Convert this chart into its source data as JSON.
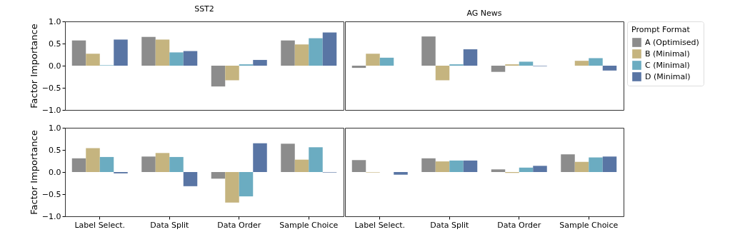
{
  "chart_data": [
    {
      "type": "bar",
      "title": "SST2",
      "ylabel": "Factor Importance",
      "categories": [
        "Label Select.",
        "Data Split",
        "Data Order",
        "Sample Choice"
      ],
      "ylim": [
        -1.0,
        1.0
      ],
      "yticks": [
        {
          "value": -1.0,
          "label": "−1.0"
        },
        {
          "value": -0.5,
          "label": "−0.5"
        },
        {
          "value": 0,
          "label": "0.0"
        },
        {
          "value": 0.5,
          "label": "0.5"
        },
        {
          "value": 1.0,
          "label": "1.0"
        }
      ],
      "tick_labels": "y",
      "grid": false,
      "legend": "right",
      "legend_title": "Prompt Format",
      "series": [
        {
          "name": "A (Optimised)",
          "color": "#8c8c8c",
          "values": [
            0.57,
            0.65,
            -0.47,
            0.57
          ]
        },
        {
          "name": "B (Minimal)",
          "color": "#c5b47f",
          "values": [
            0.27,
            0.59,
            -0.33,
            0.48
          ]
        },
        {
          "name": "C (Minimal)",
          "color": "#6bacc1",
          "values": [
            0.01,
            0.3,
            0.03,
            0.62
          ]
        },
        {
          "name": "D (Minimal)",
          "color": "#5975a4",
          "values": [
            0.59,
            0.33,
            0.13,
            0.75
          ]
        }
      ]
    },
    {
      "type": "bar",
      "title": "AG News",
      "categories": [
        "Label Select.",
        "Data Split",
        "Data Order",
        "Sample Choice"
      ],
      "ylim": [
        -1.0,
        1.0
      ],
      "yticks": [
        {
          "value": -1.0,
          "label": "−1.0"
        },
        {
          "value": -0.5,
          "label": "−0.5"
        },
        {
          "value": 0,
          "label": "0.0"
        },
        {
          "value": 0.5,
          "label": "0.5"
        },
        {
          "value": 1.0,
          "label": "1.0"
        }
      ],
      "tick_labels": false,
      "grid": false,
      "series": [
        {
          "name": "A (Optimised)",
          "color": "#8c8c8c",
          "values": [
            -0.05,
            0.66,
            -0.14,
            0.0
          ]
        },
        {
          "name": "B (Minimal)",
          "color": "#c5b47f",
          "values": [
            0.27,
            -0.33,
            0.03,
            0.11
          ]
        },
        {
          "name": "C (Minimal)",
          "color": "#6bacc1",
          "values": [
            0.18,
            0.03,
            0.09,
            0.17
          ]
        },
        {
          "name": "D (Minimal)",
          "color": "#5975a4",
          "values": [
            0.0,
            0.37,
            -0.01,
            -0.11
          ]
        }
      ]
    },
    {
      "type": "bar",
      "ylabel": "Factor Importance",
      "categories": [
        "Label Select.",
        "Data Split",
        "Data Order",
        "Sample Choice"
      ],
      "ylim": [
        -1.0,
        1.0
      ],
      "yticks": [
        {
          "value": -1.0,
          "label": "−1.0"
        },
        {
          "value": -0.5,
          "label": "−0.5"
        },
        {
          "value": 0,
          "label": "0.0"
        },
        {
          "value": 0.5,
          "label": "0.5"
        },
        {
          "value": 1.0,
          "label": "1.0"
        }
      ],
      "grid": false,
      "series": [
        {
          "name": "A (Optimised)",
          "color": "#8c8c8c",
          "values": [
            0.31,
            0.35,
            -0.15,
            0.64
          ]
        },
        {
          "name": "B (Minimal)",
          "color": "#c5b47f",
          "values": [
            0.54,
            0.43,
            -0.69,
            0.28
          ]
        },
        {
          "name": "C (Minimal)",
          "color": "#6bacc1",
          "values": [
            0.34,
            0.34,
            -0.55,
            0.56
          ]
        },
        {
          "name": "D (Minimal)",
          "color": "#5975a4",
          "values": [
            -0.03,
            -0.32,
            0.65,
            -0.01
          ]
        }
      ]
    },
    {
      "type": "bar",
      "categories": [
        "Label Select.",
        "Data Split",
        "Data Order",
        "Sample Choice"
      ],
      "ylim": [
        -1.0,
        1.0
      ],
      "yticks": [
        {
          "value": -1.0,
          "label": "−1.0"
        },
        {
          "value": -0.5,
          "label": "−0.5"
        },
        {
          "value": 0,
          "label": "0.0"
        },
        {
          "value": 0.5,
          "label": "0.5"
        },
        {
          "value": 1.0,
          "label": "1.0"
        }
      ],
      "tick_labels": "x",
      "grid": false,
      "series": [
        {
          "name": "A (Optimised)",
          "color": "#8c8c8c",
          "values": [
            0.27,
            0.31,
            0.06,
            0.4
          ]
        },
        {
          "name": "B (Minimal)",
          "color": "#c5b47f",
          "values": [
            -0.01,
            0.24,
            -0.02,
            0.23
          ]
        },
        {
          "name": "C (Minimal)",
          "color": "#6bacc1",
          "values": [
            0.0,
            0.26,
            0.1,
            0.33
          ]
        },
        {
          "name": "D (Minimal)",
          "color": "#5975a4",
          "values": [
            -0.06,
            0.26,
            0.14,
            0.35
          ]
        }
      ]
    }
  ]
}
